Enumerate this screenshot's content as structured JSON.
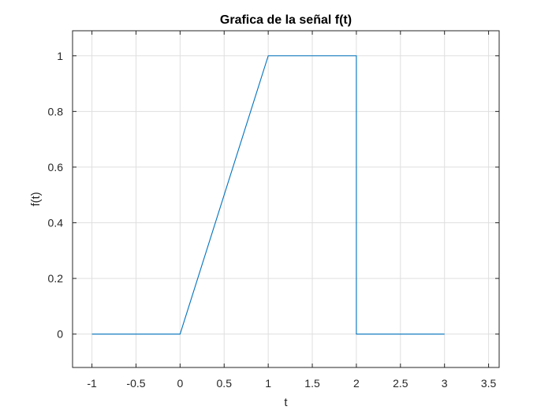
{
  "chart_data": {
    "type": "line",
    "title": "Grafica de la señal f(t)",
    "xlabel": "t",
    "ylabel": "f(t)",
    "xlim": [
      -1.22,
      3.62
    ],
    "ylim": [
      -0.12,
      1.09
    ],
    "xticks": [
      -1,
      -0.5,
      0,
      0.5,
      1,
      1.5,
      2,
      2.5,
      3,
      3.5
    ],
    "xtick_labels": [
      "-1",
      "-0.5",
      "0",
      "0.5",
      "1",
      "1.5",
      "2",
      "2.5",
      "3",
      "3.5"
    ],
    "yticks": [
      0,
      0.2,
      0.4,
      0.6,
      0.8,
      1
    ],
    "ytick_labels": [
      "0",
      "0.2",
      "0.4",
      "0.6",
      "0.8",
      "1"
    ],
    "grid": true,
    "series": [
      {
        "color": "#0072BD",
        "x": [
          -1,
          0,
          1,
          2,
          2,
          3
        ],
        "y": [
          0,
          0,
          1,
          1,
          0,
          0
        ]
      }
    ]
  }
}
